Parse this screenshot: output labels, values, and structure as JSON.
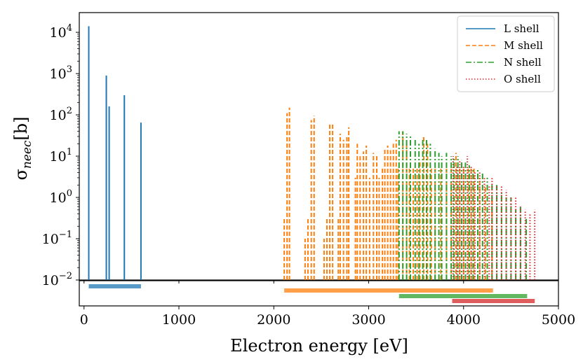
{
  "chart_data": {
    "type": "line",
    "xlabel": "Electron energy [eV]",
    "ylabel_symbol": "σ",
    "ylabel_subscript": "neec",
    "ylabel_unit": "[b]",
    "yscale": "log",
    "xlim": [
      -50,
      5000
    ],
    "ylim": [
      0.01,
      30000
    ],
    "x_ticks": [
      0,
      1000,
      2000,
      3000,
      4000,
      5000
    ],
    "x_tick_labels": [
      "0",
      "1000",
      "2000",
      "3000",
      "4000",
      "5000"
    ],
    "y_tick_exponents": [
      "4",
      "3",
      "2",
      "1",
      "0",
      "−1",
      "−2"
    ],
    "series": [
      {
        "name": "L shell",
        "label": "L shell",
        "color": "#1f77b4",
        "style": "solid",
        "range": [
          50,
          600
        ],
        "peaks": [
          [
            50,
            14000
          ],
          [
            235,
            900
          ],
          [
            265,
            160
          ],
          [
            425,
            300
          ],
          [
            600,
            65
          ]
        ]
      },
      {
        "name": "M shell",
        "label": "M shell",
        "color": "#ff7f0e",
        "style": "dashed",
        "range": [
          2110,
          4310
        ],
        "peaks": [
          [
            2110,
            0.3
          ],
          [
            2140,
            110
          ],
          [
            2165,
            150
          ],
          [
            2330,
            0.1
          ],
          [
            2360,
            0.3
          ],
          [
            2395,
            75
          ],
          [
            2425,
            95
          ],
          [
            2530,
            0.1
          ],
          [
            2560,
            0.3
          ],
          [
            2590,
            60
          ],
          [
            2620,
            60
          ],
          [
            2680,
            0.3
          ],
          [
            2700,
            35
          ],
          [
            2735,
            25
          ],
          [
            2770,
            30
          ],
          [
            2790,
            50
          ],
          [
            2860,
            3
          ],
          [
            2880,
            20
          ],
          [
            2910,
            10
          ],
          [
            2945,
            13
          ],
          [
            2975,
            18
          ],
          [
            3010,
            3
          ],
          [
            3050,
            12
          ],
          [
            3085,
            10
          ],
          [
            3110,
            3
          ],
          [
            3145,
            5
          ],
          [
            3170,
            15
          ],
          [
            3200,
            18
          ],
          [
            3230,
            14
          ],
          [
            3260,
            20
          ],
          [
            3290,
            25
          ],
          [
            3310,
            5
          ],
          [
            3360,
            40
          ],
          [
            3400,
            20
          ],
          [
            3430,
            5
          ],
          [
            3470,
            5
          ],
          [
            3510,
            5
          ],
          [
            3540,
            8
          ],
          [
            3580,
            30
          ],
          [
            3620,
            20
          ],
          [
            3660,
            5
          ],
          [
            3700,
            5
          ],
          [
            3760,
            5
          ],
          [
            3820,
            5
          ],
          [
            3870,
            5
          ],
          [
            3920,
            12
          ],
          [
            3960,
            5
          ],
          [
            4000,
            5
          ],
          [
            4050,
            5
          ],
          [
            4080,
            5
          ],
          [
            4110,
            5
          ],
          [
            4170,
            3
          ],
          [
            4230,
            2
          ],
          [
            4300,
            1
          ]
        ]
      },
      {
        "name": "N shell",
        "label": "N shell",
        "color": "#2ca02c",
        "style": "dashdot",
        "range": [
          3320,
          4670
        ],
        "peaks": [
          [
            3320,
            40
          ],
          [
            3360,
            40
          ],
          [
            3400,
            35
          ],
          [
            3440,
            30
          ],
          [
            3490,
            25
          ],
          [
            3530,
            20
          ],
          [
            3570,
            28
          ],
          [
            3610,
            25
          ],
          [
            3650,
            20
          ],
          [
            3700,
            15
          ],
          [
            3740,
            12
          ],
          [
            3770,
            10
          ],
          [
            3820,
            12
          ],
          [
            3870,
            10
          ],
          [
            3900,
            9
          ],
          [
            3940,
            10
          ],
          [
            3980,
            8
          ],
          [
            4020,
            7
          ],
          [
            4060,
            6
          ],
          [
            4100,
            5
          ],
          [
            4150,
            5
          ],
          [
            4200,
            4
          ],
          [
            4250,
            3
          ],
          [
            4300,
            2
          ],
          [
            4350,
            2
          ],
          [
            4400,
            1.5
          ],
          [
            4450,
            1
          ],
          [
            4500,
            1
          ],
          [
            4550,
            0.5
          ],
          [
            4600,
            0.6
          ],
          [
            4660,
            0.3
          ]
        ]
      },
      {
        "name": "O shell",
        "label": "O shell",
        "color": "#d62728",
        "style": "dotted",
        "range": [
          3880,
          4750
        ],
        "peaks": [
          [
            3890,
            10
          ],
          [
            3930,
            6
          ],
          [
            3960,
            8
          ],
          [
            4000,
            6
          ],
          [
            4040,
            10
          ],
          [
            4080,
            6
          ],
          [
            4120,
            4
          ],
          [
            4170,
            4
          ],
          [
            4220,
            3
          ],
          [
            4270,
            2
          ],
          [
            4300,
            3
          ],
          [
            4350,
            2
          ],
          [
            4400,
            2
          ],
          [
            4450,
            1.5
          ],
          [
            4500,
            1
          ],
          [
            4550,
            1
          ],
          [
            4600,
            0.6
          ],
          [
            4650,
            0.5
          ],
          [
            4700,
            0.4
          ],
          [
            4750,
            0.5
          ]
        ]
      }
    ]
  }
}
